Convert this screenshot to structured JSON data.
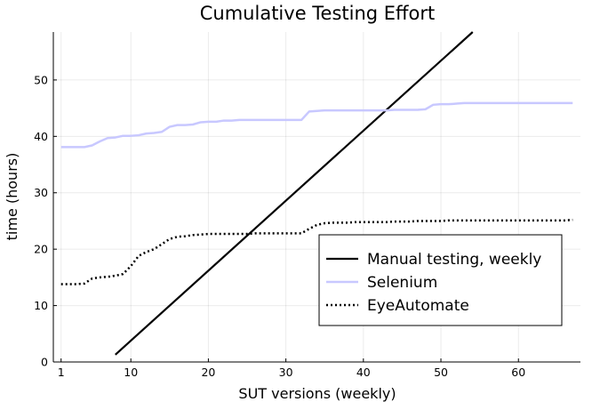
{
  "chart_data": {
    "type": "line",
    "title": "Cumulative Testing Effort",
    "xlabel": "SUT versions (weekly)",
    "ylabel": "time (hours)",
    "xlim": [
      0,
      68
    ],
    "ylim": [
      0,
      58.5
    ],
    "xticks": [
      1,
      10,
      20,
      30,
      40,
      50,
      60
    ],
    "yticks": [
      0,
      10,
      20,
      30,
      40,
      50
    ],
    "grid": true,
    "legend_position": "bottom-right",
    "series": [
      {
        "name": "Manual testing, weekly",
        "color": "#000000",
        "style": "solid",
        "x": [
          8,
          54.1
        ],
        "y": [
          1.3,
          58.5
        ]
      },
      {
        "name": "Selenium",
        "color": "#c8c8ff",
        "style": "solid",
        "x": [
          1,
          2,
          3,
          4,
          5,
          6,
          7,
          8,
          9,
          10,
          11,
          12,
          13,
          14,
          15,
          16,
          17,
          18,
          19,
          20,
          21,
          22,
          23,
          24,
          25,
          26,
          27,
          28,
          29,
          30,
          31,
          32,
          33,
          34,
          35,
          36,
          37,
          38,
          39,
          40,
          41,
          42,
          43,
          44,
          45,
          46,
          47,
          48,
          49,
          50,
          51,
          52,
          53,
          54,
          55,
          56,
          57,
          58,
          59,
          60,
          61,
          62,
          63,
          64,
          65,
          66,
          67
        ],
        "y": [
          38.1,
          38.1,
          38.1,
          38.1,
          38.4,
          39.1,
          39.7,
          39.8,
          40.1,
          40.1,
          40.2,
          40.5,
          40.6,
          40.8,
          41.7,
          42.0,
          42.0,
          42.1,
          42.5,
          42.6,
          42.6,
          42.8,
          42.8,
          42.9,
          42.9,
          42.9,
          42.9,
          42.9,
          42.9,
          42.9,
          42.9,
          42.9,
          44.4,
          44.5,
          44.6,
          44.6,
          44.6,
          44.6,
          44.6,
          44.6,
          44.6,
          44.6,
          44.6,
          44.7,
          44.7,
          44.7,
          44.7,
          44.8,
          45.6,
          45.7,
          45.7,
          45.8,
          45.9,
          45.9,
          45.9,
          45.9,
          45.9,
          45.9,
          45.9,
          45.9,
          45.9,
          45.9,
          45.9,
          45.9,
          45.9,
          45.9,
          45.9
        ]
      },
      {
        "name": "EyeAutomate",
        "color": "#000000",
        "style": "dotted",
        "x": [
          1,
          2,
          3,
          4,
          5,
          6,
          7,
          8,
          9,
          10,
          11,
          12,
          13,
          14,
          15,
          16,
          17,
          18,
          19,
          20,
          21,
          22,
          23,
          24,
          25,
          26,
          27,
          28,
          29,
          30,
          31,
          32,
          33,
          34,
          35,
          36,
          37,
          38,
          39,
          40,
          41,
          42,
          43,
          44,
          45,
          46,
          47,
          48,
          49,
          50,
          51,
          52,
          53,
          54,
          55,
          56,
          57,
          58,
          59,
          60,
          61,
          62,
          63,
          64,
          65,
          66,
          67
        ],
        "y": [
          13.8,
          13.8,
          13.8,
          13.9,
          14.8,
          15.0,
          15.1,
          15.3,
          15.6,
          17.0,
          18.8,
          19.5,
          20.0,
          20.9,
          21.8,
          22.2,
          22.3,
          22.5,
          22.6,
          22.7,
          22.7,
          22.7,
          22.7,
          22.7,
          22.7,
          22.8,
          22.8,
          22.8,
          22.8,
          22.8,
          22.8,
          22.8,
          23.6,
          24.3,
          24.6,
          24.7,
          24.7,
          24.7,
          24.8,
          24.8,
          24.8,
          24.8,
          24.8,
          24.9,
          24.9,
          24.9,
          25.0,
          25.0,
          25.0,
          25.0,
          25.1,
          25.1,
          25.1,
          25.1,
          25.1,
          25.1,
          25.1,
          25.1,
          25.1,
          25.1,
          25.1,
          25.1,
          25.1,
          25.1,
          25.1,
          25.1,
          25.2
        ]
      }
    ]
  }
}
